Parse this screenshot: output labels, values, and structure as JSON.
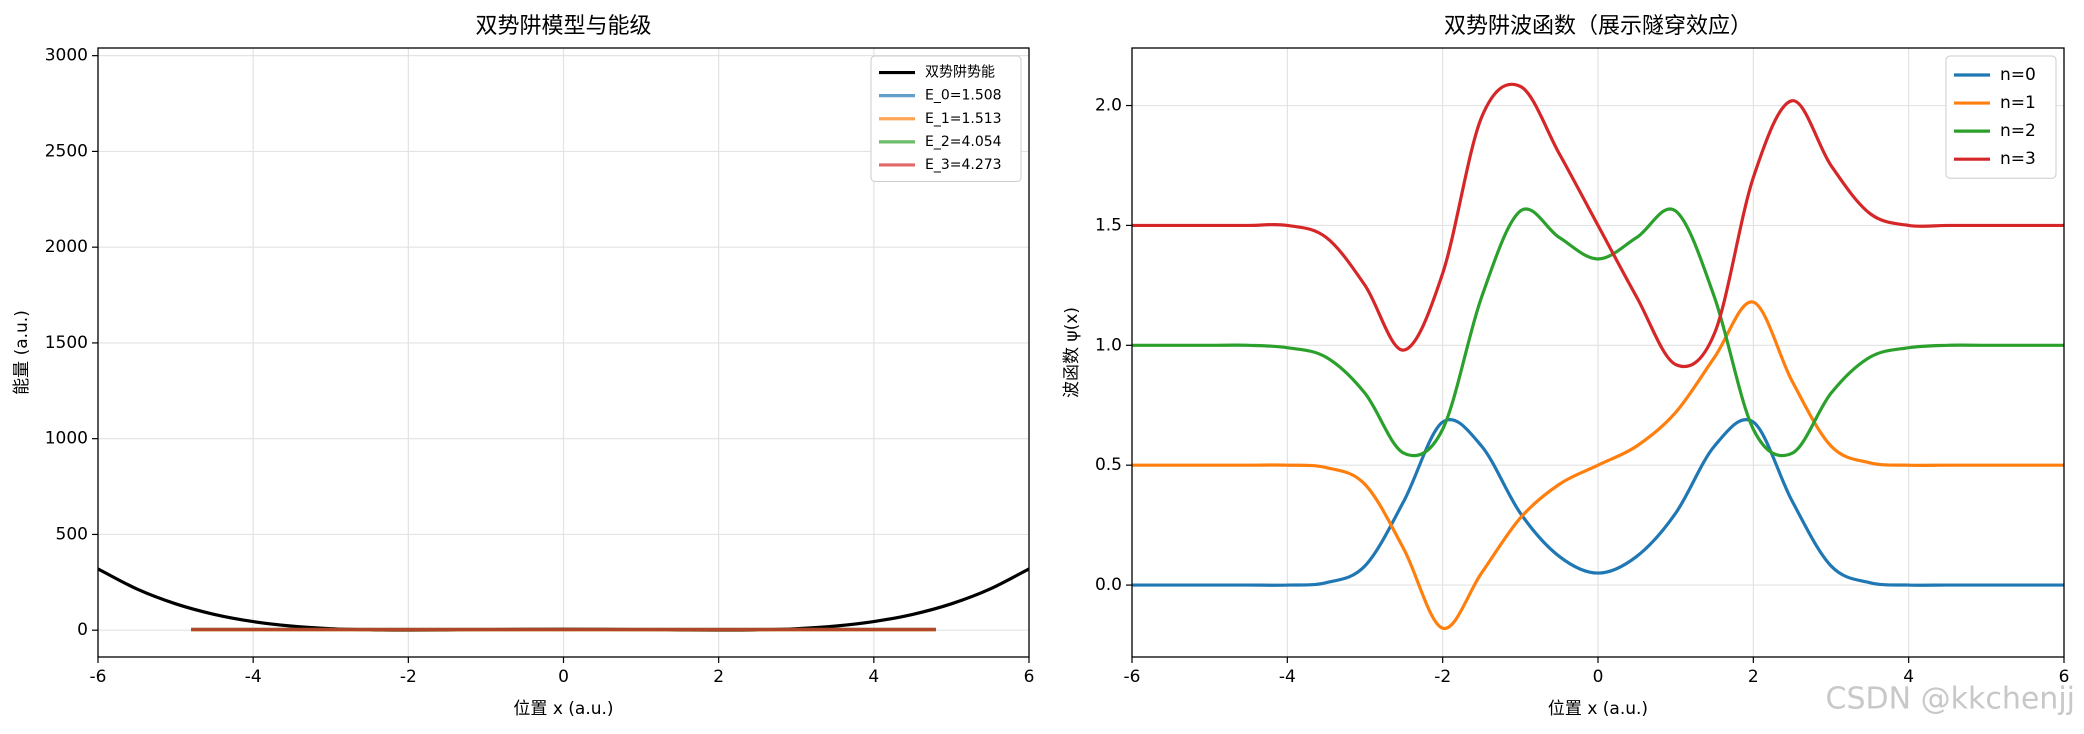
{
  "chart_data": [
    {
      "type": "line",
      "title": "双势阱模型与能级",
      "x_label": "位置 x (a.u.)",
      "y_label": "能量 (a.u.)",
      "x": [
        -6,
        -5.5,
        -5,
        -4.5,
        -4,
        -3.5,
        -3,
        -2.5,
        -2,
        -1.5,
        -1,
        -0.5,
        0,
        0.5,
        1,
        1.5,
        2,
        2.5,
        3,
        3.5,
        4,
        4.5,
        5,
        5.5,
        6
      ],
      "series": [
        {
          "name": "双势阱势能",
          "color": "#000000",
          "values": [
            320,
            215.3,
            137.8,
            82.5,
            45,
            21.3,
            7.8,
            1.6,
            0,
            1.0,
            2.8,
            4.4,
            5,
            4.4,
            2.8,
            1.0,
            0,
            1.6,
            7.8,
            21.3,
            45,
            82.5,
            137.8,
            215.3,
            320
          ]
        },
        {
          "name": "E_0=1.508",
          "color": "#1f77b4",
          "alpha": 0.7,
          "x": [
            -4.8,
            4.8
          ],
          "values": [
            1.508,
            1.508
          ]
        },
        {
          "name": "E_1=1.513",
          "color": "#ff7f0e",
          "alpha": 0.7,
          "x": [
            -4.8,
            4.8
          ],
          "values": [
            1.513,
            1.513
          ]
        },
        {
          "name": "E_2=4.054",
          "color": "#2ca02c",
          "alpha": 0.7,
          "x": [
            -4.8,
            4.8
          ],
          "values": [
            4.054,
            4.054
          ]
        },
        {
          "name": "E_3=4.273",
          "color": "#d62728",
          "alpha": 0.7,
          "x": [
            -4.8,
            4.8
          ],
          "values": [
            4.273,
            4.273
          ]
        }
      ],
      "xlim": [
        -6,
        6
      ],
      "xticks": [
        -6,
        -4,
        -2,
        0,
        2,
        4,
        6
      ],
      "ylim": [
        -140,
        3040
      ],
      "yticks": [
        0,
        500,
        1000,
        1500,
        2000,
        2500,
        3000
      ],
      "grid": true,
      "legend": "upper right"
    },
    {
      "type": "line",
      "title": "双势阱波函数（展示隧穿效应）",
      "x_label": "位置 x (a.u.)",
      "y_label": "波函数 ψ(x)",
      "x": [
        -6,
        -5.5,
        -5,
        -4.5,
        -4,
        -3.5,
        -3,
        -2.5,
        -2,
        -1.5,
        -1,
        -0.5,
        0,
        0.5,
        1,
        1.5,
        2,
        2.5,
        3,
        3.5,
        4,
        4.5,
        5,
        5.5,
        6
      ],
      "series": [
        {
          "name": "n=0",
          "color": "#1f77b4",
          "values": [
            0,
            0,
            0,
            0,
            0,
            0.01,
            0.08,
            0.35,
            0.68,
            0.58,
            0.3,
            0.12,
            0.05,
            0.12,
            0.3,
            0.58,
            0.68,
            0.35,
            0.08,
            0.01,
            0,
            0,
            0,
            0,
            0
          ]
        },
        {
          "name": "n=1",
          "color": "#ff7f0e",
          "values": [
            0.5,
            0.5,
            0.5,
            0.5,
            0.5,
            0.49,
            0.42,
            0.15,
            -0.18,
            0.05,
            0.28,
            0.42,
            0.5,
            0.58,
            0.72,
            0.95,
            1.18,
            0.85,
            0.58,
            0.51,
            0.5,
            0.5,
            0.5,
            0.5,
            0.5
          ]
        },
        {
          "name": "n=2",
          "color": "#2ca02c",
          "values": [
            1,
            1,
            1,
            1,
            0.99,
            0.95,
            0.8,
            0.55,
            0.65,
            1.2,
            1.56,
            1.45,
            1.36,
            1.45,
            1.56,
            1.2,
            0.65,
            0.55,
            0.8,
            0.95,
            0.99,
            1,
            1,
            1,
            1
          ]
        },
        {
          "name": "n=3",
          "color": "#d62728",
          "values": [
            1.5,
            1.5,
            1.5,
            1.5,
            1.5,
            1.45,
            1.25,
            0.98,
            1.3,
            1.95,
            2.08,
            1.8,
            1.5,
            1.2,
            0.92,
            1.05,
            1.7,
            2.02,
            1.75,
            1.55,
            1.5,
            1.5,
            1.5,
            1.5,
            1.5
          ]
        }
      ],
      "xlim": [
        -6,
        6
      ],
      "xticks": [
        -6,
        -4,
        -2,
        0,
        2,
        4,
        6
      ],
      "ylim": [
        -0.3,
        2.24
      ],
      "yticks": [
        0.0,
        0.5,
        1.0,
        1.5,
        2.0
      ],
      "ytick_labels": [
        "0.0",
        "0.5",
        "1.0",
        "1.5",
        "2.0"
      ],
      "grid": true,
      "legend": "upper right"
    }
  ],
  "watermark": "CSDN @kkchenjj"
}
